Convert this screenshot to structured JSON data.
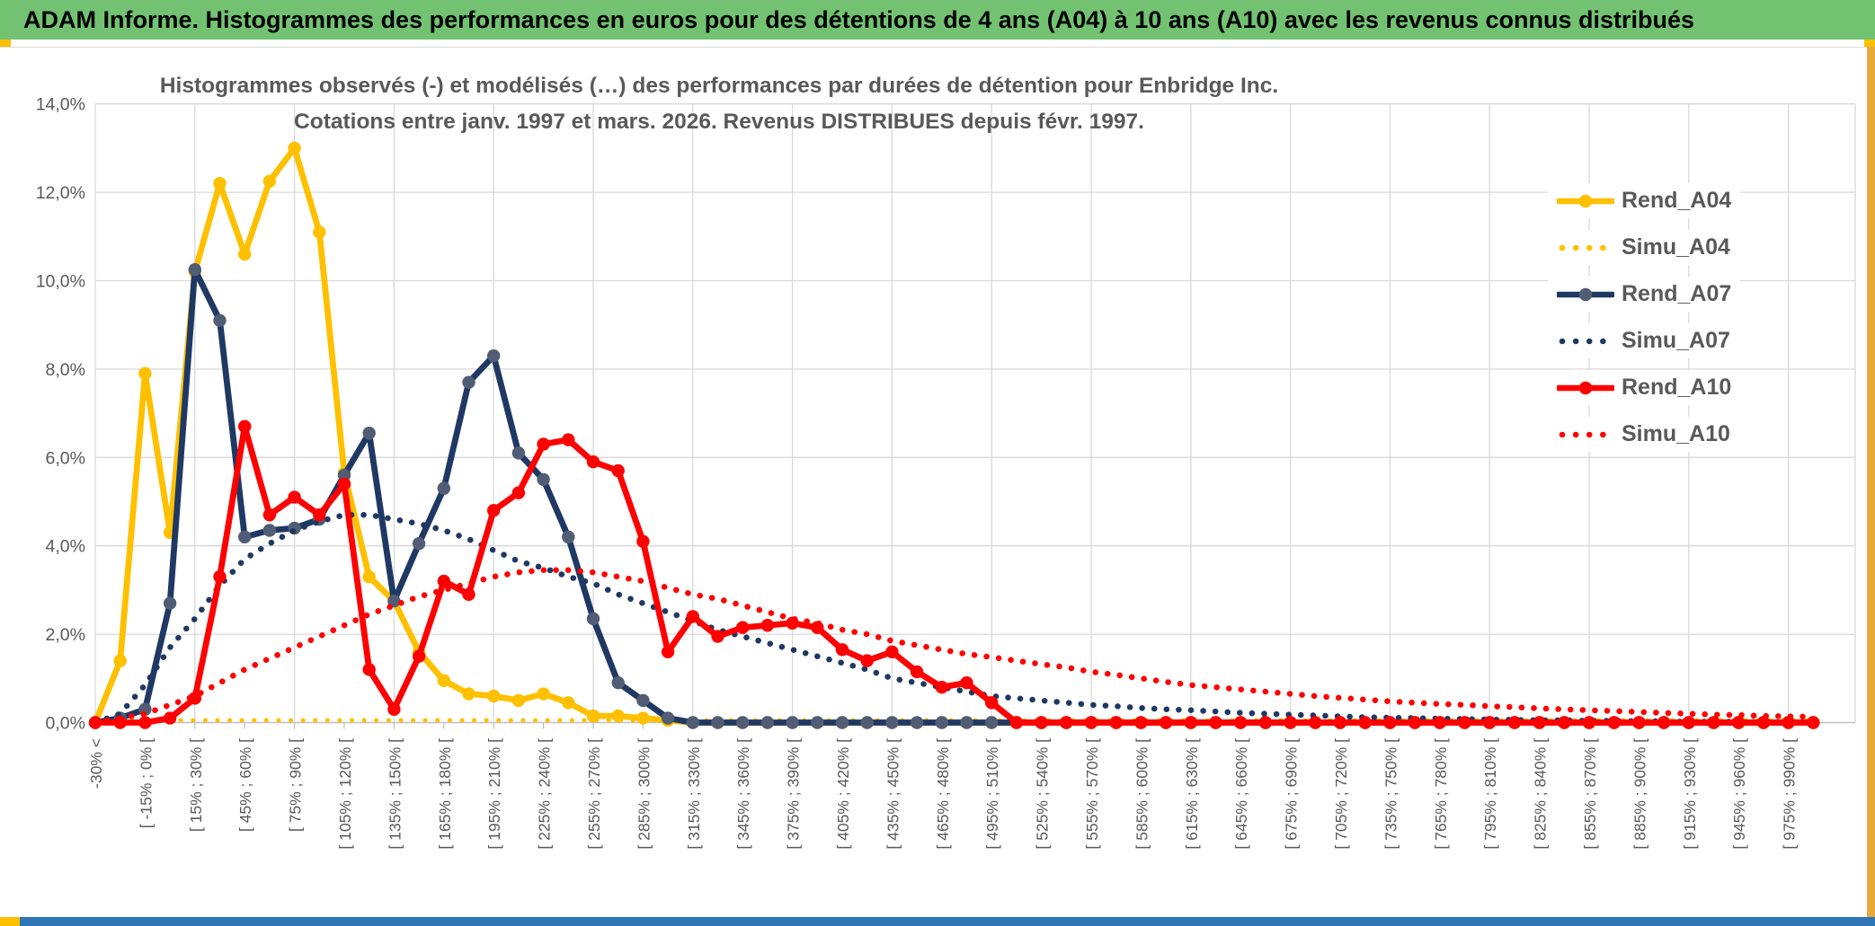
{
  "window": {
    "title": "ADAM Informe. Histogrammes des performances en euros pour des détentions de 4 ans (A04) à 10 ans (A10) avec les revenus connus distribués",
    "banner_color": "#72C272",
    "accent_color": "#FFC000",
    "bottom_bar_color": "#2E75B6"
  },
  "chart_data": {
    "type": "line",
    "title_line1": "Histogrammes observés (-) et modélisés (…) des performances par durées de détention pour Enbridge Inc.",
    "title_line2": "Cotations entre janv. 1997 et mars. 2026.  Revenus DISTRIBUES depuis févr. 1997.",
    "ylabel": "",
    "xlabel": "",
    "ylim_percent": [
      0,
      14
    ],
    "y_tick_step_percent": 2,
    "y_tick_labels": [
      "0,0%",
      "2,0%",
      "4,0%",
      "6,0%",
      "8,0%",
      "10,0%",
      "12,0%",
      "14,0%"
    ],
    "num_points": 70,
    "bin_width_percent": 15,
    "points_per_x_label": 2,
    "grid": "on",
    "legend_position": "right",
    "x_labels": [
      "-30% <",
      "[ -15% ; 0% [",
      "[ 15% ; 30% [",
      "[ 45% ; 60% [",
      "[ 75% ; 90% [",
      "[ 105% ; 120% [",
      "[ 135% ; 150% [",
      "[ 165% ; 180% [",
      "[ 195% ; 210% [",
      "[ 225% ; 240% [",
      "[ 255% ; 270% [",
      "[ 285% ; 300% [",
      "[ 315% ; 330% [",
      "[ 345% ; 360% [",
      "[ 375% ; 390% [",
      "[ 405% ; 420% [",
      "[ 435% ; 450% [",
      "[ 465% ; 480% [",
      "[ 495% ; 510% [",
      "[ 525% ; 540% [",
      "[ 555% ; 570% [",
      "[ 585% ; 600% [",
      "[ 615% ; 630% [",
      "[ 645% ; 660% [",
      "[ 675% ; 690% [",
      "[ 705% ; 720% [",
      "[ 735% ; 750% [",
      "[ 765% ; 780% [",
      "[ 795% ; 810% [",
      "[ 825% ; 840% [",
      "[ 855% ; 870% [",
      "[ 885% ; 900% [",
      "[ 915% ; 930% [",
      "[ 945% ; 960% [",
      "[ 975% ; 990% ["
    ],
    "series": [
      {
        "name": "Rend_A04",
        "style": "solid",
        "color": "#FFC000",
        "marker_color": "#FFC000",
        "values_percent": [
          0,
          1.4,
          7.9,
          4.3,
          10.2,
          12.2,
          10.6,
          12.25,
          13.0,
          11.1,
          5.65,
          3.3,
          2.75,
          1.6,
          0.95,
          0.65,
          0.6,
          0.5,
          0.65,
          0.45,
          0.15,
          0.15,
          0.1,
          0.05,
          0,
          0,
          0,
          0,
          0,
          0,
          0,
          0,
          0,
          0,
          0,
          0,
          0,
          0,
          0,
          0,
          0,
          0,
          0,
          0,
          0,
          0,
          0,
          0,
          0,
          0,
          0,
          0,
          0,
          0,
          0,
          0,
          0,
          0,
          0,
          0,
          0,
          0,
          0,
          0,
          0,
          0,
          0,
          0,
          0,
          0
        ]
      },
      {
        "name": "Simu_A04",
        "style": "dotted",
        "color": "#FFC000",
        "values_percent": [
          0,
          0.05,
          0.05,
          0.05,
          0.05,
          0.05,
          0.05,
          0.05,
          0.05,
          0.05,
          0.05,
          0.05,
          0.05,
          0.05,
          0.05,
          0.05,
          0.05,
          0.05,
          0.05,
          0.05,
          0.05,
          0.05,
          0.05,
          0.05,
          0.05,
          0.05,
          0.05,
          0.05,
          0.05,
          0.05,
          0.05,
          0.05,
          0.05,
          0.05,
          0.05,
          0.05,
          0.05,
          0.05,
          0.05,
          0.05,
          0.05,
          0.05,
          0.05,
          0.05,
          0.05,
          0.05,
          0.05,
          0.05,
          0.05,
          0.05,
          0.05,
          0.05,
          0.05,
          0.05,
          0.05,
          0.05,
          0.05,
          0.05,
          0.05,
          0.05,
          0.05,
          0.05,
          0.05,
          0.05,
          0.05,
          0.05,
          0.05,
          0.05,
          0.05,
          0.05
        ]
      },
      {
        "name": "Rend_A07",
        "style": "solid",
        "color": "#1F3864",
        "marker_color": "#505D75",
        "values_percent": [
          0,
          0.1,
          0.3,
          2.7,
          10.25,
          9.1,
          4.2,
          4.35,
          4.4,
          4.6,
          5.6,
          6.55,
          2.75,
          4.05,
          5.3,
          7.7,
          8.3,
          6.1,
          5.5,
          4.2,
          2.35,
          0.9,
          0.5,
          0.1,
          0,
          0,
          0,
          0,
          0,
          0,
          0,
          0,
          0,
          0,
          0,
          0,
          0,
          0,
          0,
          0,
          0,
          0,
          0,
          0,
          0,
          0,
          0,
          0,
          0,
          0,
          0,
          0,
          0,
          0,
          0,
          0,
          0,
          0,
          0,
          0,
          0,
          0,
          0,
          0,
          0,
          0,
          0,
          0,
          0,
          0
        ]
      },
      {
        "name": "Simu_A07",
        "style": "dotted",
        "color": "#1F3864",
        "values_percent": [
          0,
          0.2,
          0.85,
          1.7,
          2.35,
          3.1,
          3.7,
          4.05,
          4.35,
          4.55,
          4.7,
          4.7,
          4.6,
          4.5,
          4.35,
          4.15,
          3.9,
          3.65,
          3.5,
          3.3,
          3.15,
          2.9,
          2.7,
          2.5,
          2.3,
          2.1,
          1.95,
          1.8,
          1.65,
          1.5,
          1.35,
          1.2,
          1.0,
          0.9,
          0.8,
          0.7,
          0.6,
          0.55,
          0.5,
          0.45,
          0.4,
          0.37,
          0.33,
          0.3,
          0.28,
          0.25,
          0.22,
          0.2,
          0.18,
          0.16,
          0.14,
          0.12,
          0.11,
          0.1,
          0.09,
          0.08,
          0.07,
          0.06,
          0.05,
          0.05,
          0.04,
          0.04,
          0.03,
          0.03,
          0.02,
          0.02,
          0.02,
          0.01,
          0.01,
          0.01
        ]
      },
      {
        "name": "Rend_A10",
        "style": "solid",
        "color": "#FF0000",
        "marker_color": "#FF0000",
        "values_percent": [
          0,
          0,
          0,
          0.1,
          0.55,
          3.3,
          6.7,
          4.7,
          5.1,
          4.7,
          5.4,
          1.2,
          0.3,
          1.5,
          3.2,
          2.9,
          4.8,
          5.2,
          6.3,
          6.4,
          5.9,
          5.7,
          4.1,
          1.6,
          2.4,
          1.95,
          2.15,
          2.2,
          2.25,
          2.15,
          1.65,
          1.4,
          1.6,
          1.15,
          0.8,
          0.9,
          0.45,
          0,
          0,
          0,
          0,
          0,
          0,
          0,
          0,
          0,
          0,
          0,
          0,
          0,
          0,
          0,
          0,
          0,
          0,
          0,
          0,
          0,
          0,
          0,
          0,
          0,
          0,
          0,
          0,
          0,
          0,
          0,
          0,
          0
        ]
      },
      {
        "name": "Simu_A10",
        "style": "dotted",
        "color": "#FF0000",
        "values_percent": [
          0,
          0.1,
          0.2,
          0.4,
          0.6,
          0.9,
          1.2,
          1.45,
          1.7,
          1.95,
          2.2,
          2.45,
          2.65,
          2.85,
          3.0,
          3.15,
          3.3,
          3.4,
          3.45,
          3.45,
          3.4,
          3.3,
          3.2,
          3.05,
          2.9,
          2.8,
          2.65,
          2.5,
          2.35,
          2.25,
          2.1,
          2.0,
          1.85,
          1.75,
          1.65,
          1.55,
          1.48,
          1.4,
          1.32,
          1.25,
          1.15,
          1.08,
          1.0,
          0.92,
          0.85,
          0.8,
          0.75,
          0.7,
          0.65,
          0.6,
          0.56,
          0.52,
          0.48,
          0.45,
          0.42,
          0.4,
          0.37,
          0.35,
          0.32,
          0.3,
          0.28,
          0.26,
          0.24,
          0.22,
          0.2,
          0.18,
          0.17,
          0.15,
          0.14,
          0.13
        ]
      }
    ],
    "axis_colors": {
      "gridline": "#D9D9D9",
      "axis_line": "#BFBFBF",
      "tick_label": "#595959"
    }
  }
}
